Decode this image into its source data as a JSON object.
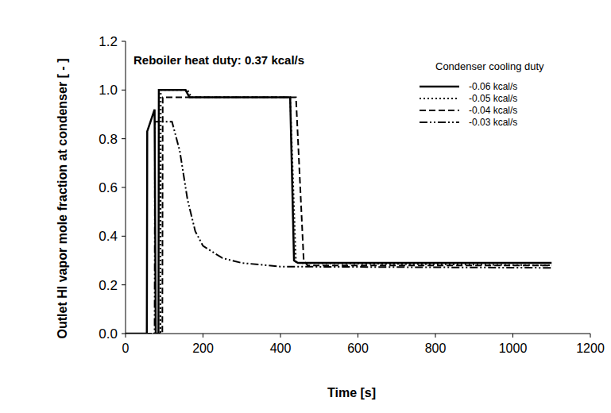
{
  "chart_data": {
    "type": "line",
    "annotation": "Reboiler heat duty: 0.37 kcal/s",
    "legend_title": "Condenser cooling duty",
    "x_label": "Time [s]",
    "y_label": "Outlet HI vapor mole fraction at condenser [ - ]",
    "xlim": [
      0,
      1200
    ],
    "xticks": [
      0,
      200,
      400,
      600,
      800,
      1000,
      1200
    ],
    "ylim": [
      0,
      1.2
    ],
    "yticks": [
      {
        "value": 0,
        "label": "0.0"
      },
      0.2,
      0.4,
      0.6,
      0.8,
      {
        "value": 1,
        "label": "1.0"
      },
      1.2
    ],
    "grid": false,
    "legend": "top-right",
    "series": [
      {
        "name": "-0.06 kcal/s",
        "color": "#000000",
        "line_style": "solid",
        "x": [
          0,
          55,
          56,
          75,
          78,
          85,
          86,
          155,
          165,
          425,
          435,
          445,
          1100
        ],
        "values": [
          0,
          0,
          0.83,
          0.92,
          0,
          0,
          1.0,
          1.0,
          0.97,
          0.97,
          0.3,
          0.29,
          0.29
        ]
      },
      {
        "name": "-0.05 kcal/s",
        "color": "#000000",
        "line_style": "dotted",
        "x": [
          0,
          90,
          91,
          160,
          170,
          425,
          440,
          1100
        ],
        "values": [
          0,
          0,
          1.0,
          1.0,
          0.97,
          0.97,
          0.29,
          0.28
        ]
      },
      {
        "name": "-0.04 kcal/s",
        "color": "#000000",
        "line_style": "dashed",
        "x": [
          0,
          95,
          96,
          440,
          460,
          470,
          1100
        ],
        "values": [
          0,
          0,
          0.97,
          0.97,
          0.3,
          0.28,
          0.28
        ]
      },
      {
        "name": "-0.03 kcal/s",
        "color": "#000000",
        "line_style": "dash-dot-dot",
        "x": [
          0,
          75,
          76,
          120,
          140,
          160,
          180,
          200,
          250,
          300,
          400,
          1100
        ],
        "values": [
          0,
          0,
          0.87,
          0.87,
          0.75,
          0.55,
          0.42,
          0.36,
          0.31,
          0.29,
          0.275,
          0.27
        ]
      }
    ]
  }
}
